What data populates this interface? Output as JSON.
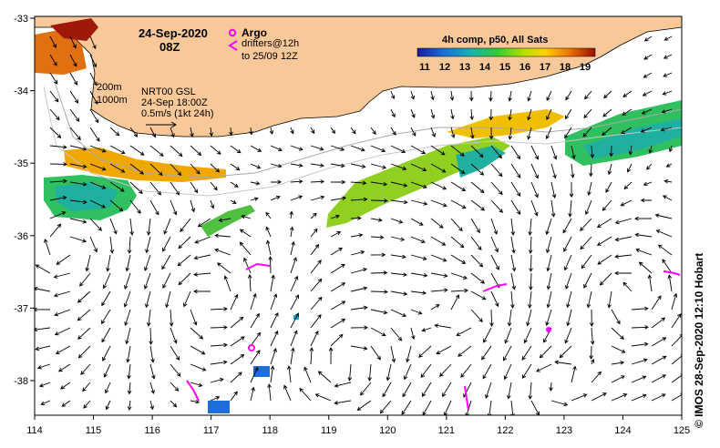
{
  "map": {
    "date": "24-Sep-2020",
    "hour": "08Z",
    "legend_argo": "Argo",
    "legend_drifters_1": "drifters@12h",
    "legend_drifters_2": "to 25/09 12Z",
    "colorbar_title": "4h comp, p50, All Sats",
    "colorbar_ticks": [
      "11",
      "12",
      "13",
      "14",
      "15",
      "16",
      "17",
      "18",
      "19"
    ],
    "isobath_1": "200m",
    "isobath_2": "1000m",
    "nrt_line_1": "NRT00 GSL",
    "nrt_line_2": "24-Sep 18:00Z",
    "nrt_line_3": "0.5m/s (1kt 24h)",
    "credit": "© IMOS 28-Sep-2020 12:10 Hobart",
    "x_ticks": [
      "114",
      "115",
      "116",
      "117",
      "118",
      "119",
      "120",
      "121",
      "122",
      "123",
      "124",
      "125"
    ],
    "y_ticks": [
      "-33",
      "-34",
      "-35",
      "-36",
      "-37",
      "-38"
    ],
    "colors": {
      "land": "#f9c898",
      "argo": "#ff00ff",
      "ocean": "#ffffff"
    }
  }
}
